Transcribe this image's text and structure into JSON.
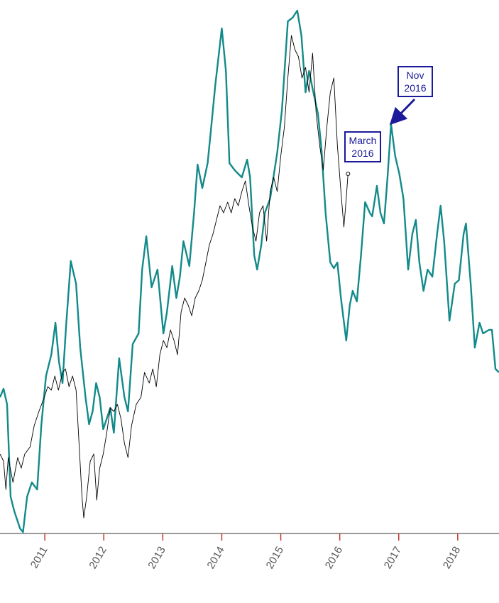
{
  "chart_data": {
    "type": "line",
    "annotations": [
      "March 2016",
      "Nov 2016"
    ],
    "xlim": [
      2010.24,
      2018.7
    ],
    "xticks": [
      2011,
      2012,
      2013,
      2014,
      2015,
      2016,
      2017,
      2018
    ],
    "ylim": [
      0,
      742
    ],
    "series": [
      {
        "color": "#138a8a",
        "x": [
          2010.24,
          2010.3,
          2010.36,
          2010.42,
          2010.48,
          2010.58,
          2010.63,
          2010.7,
          2010.78,
          2010.87,
          2010.94,
          2011.02,
          2011.11,
          2011.18,
          2011.24,
          2011.3,
          2011.36,
          2011.44,
          2011.53,
          2011.6,
          2011.69,
          2011.75,
          2011.81,
          2011.87,
          2011.93,
          2011.99,
          2012.05,
          2012.11,
          2012.17,
          2012.26,
          2012.35,
          2012.41,
          2012.49,
          2012.59,
          2012.65,
          2012.72,
          2012.81,
          2012.91,
          2013.01,
          2013.07,
          2013.16,
          2013.23,
          2013.29,
          2013.35,
          2013.45,
          2013.53,
          2013.59,
          2013.67,
          2013.76,
          2013.82,
          2013.89,
          2014.0,
          2014.07,
          2014.13,
          2014.22,
          2014.34,
          2014.43,
          2014.48,
          2014.55,
          2014.6,
          2014.67,
          2014.73,
          2014.82,
          2014.94,
          2015.02,
          2015.12,
          2015.2,
          2015.28,
          2015.35,
          2015.42,
          2015.48,
          2015.54,
          2015.63,
          2015.69,
          2015.76,
          2015.84,
          2015.9,
          2015.96,
          2016.02,
          2016.11,
          2016.17,
          2016.22,
          2016.29,
          2016.36,
          2016.43,
          2016.51,
          2016.55,
          2016.63,
          2016.69,
          2016.75,
          2016.81,
          2016.87,
          2016.94,
          2017.01,
          2017.08,
          2017.16,
          2017.23,
          2017.29,
          2017.35,
          2017.42,
          2017.49,
          2017.57,
          2017.65,
          2017.71,
          2017.77,
          2017.86,
          2017.95,
          2018.02,
          2018.1,
          2018.14,
          2018.22,
          2018.29,
          2018.37,
          2018.43,
          2018.53,
          2018.58,
          2018.64,
          2018.7
        ],
        "values": [
          192,
          204,
          182,
          52,
          32,
          7,
          2,
          52,
          72,
          62,
          152,
          222,
          252,
          297,
          242,
          212,
          292,
          384,
          352,
          262,
          192,
          154,
          172,
          212,
          192,
          147,
          162,
          177,
          142,
          247,
          192,
          172,
          267,
          282,
          372,
          419,
          347,
          372,
          282,
          312,
          377,
          332,
          362,
          412,
          377,
          452,
          520,
          487,
          522,
          572,
          632,
          712,
          652,
          522,
          512,
          502,
          527,
          502,
          392,
          372,
          407,
          452,
          472,
          537,
          597,
          722,
          727,
          737,
          702,
          622,
          652,
          627,
          592,
          542,
          452,
          382,
          374,
          382,
          332,
          272,
          322,
          342,
          327,
          392,
          467,
          452,
          447,
          490,
          452,
          437,
          502,
          577,
          532,
          507,
          472,
          372,
          422,
          442,
          382,
          342,
          372,
          362,
          422,
          462,
          412,
          300,
          352,
          357,
          422,
          437,
          352,
          262,
          297,
          282,
          287,
          287,
          232,
          227
        ]
      },
      {
        "color": "#000000",
        "x": [
          2010.24,
          2010.3,
          2010.34,
          2010.38,
          2010.46,
          2010.54,
          2010.6,
          2010.66,
          2010.75,
          2010.82,
          2010.9,
          2010.99,
          2011.05,
          2011.11,
          2011.17,
          2011.23,
          2011.3,
          2011.35,
          2011.41,
          2011.47,
          2011.53,
          2011.57,
          2011.63,
          2011.66,
          2011.71,
          2011.77,
          2011.83,
          2011.88,
          2011.93,
          2011.99,
          2012.05,
          2012.11,
          2012.17,
          2012.23,
          2012.29,
          2012.35,
          2012.41,
          2012.47,
          2012.55,
          2012.63,
          2012.69,
          2012.77,
          2012.83,
          2012.89,
          2012.95,
          2013.01,
          2013.07,
          2013.13,
          2013.19,
          2013.25,
          2013.31,
          2013.37,
          2013.43,
          2013.49,
          2013.55,
          2013.61,
          2013.67,
          2013.73,
          2013.79,
          2013.85,
          2013.91,
          2013.97,
          2014.03,
          2014.1,
          2014.16,
          2014.22,
          2014.28,
          2014.34,
          2014.4,
          2014.46,
          2014.52,
          2014.58,
          2014.64,
          2014.7,
          2014.76,
          2014.82,
          2014.88,
          2014.94,
          2015.0,
          2015.06,
          2015.12,
          2015.18,
          2015.24,
          2015.3,
          2015.36,
          2015.42,
          2015.48,
          2015.54,
          2015.6,
          2015.66,
          2015.72,
          2015.78,
          2015.84,
          2015.9,
          2015.96,
          2016.02,
          2016.07,
          2016.11,
          2016.14
        ],
        "values": [
          112,
          102,
          62,
          107,
          72,
          107,
          92,
          112,
          122,
          152,
          172,
          192,
          207,
          202,
          222,
          202,
          227,
          232,
          207,
          222,
          202,
          142,
          52,
          22,
          52,
          102,
          112,
          47,
          92,
          112,
          142,
          177,
          172,
          182,
          162,
          127,
          107,
          152,
          182,
          192,
          227,
          212,
          232,
          207,
          252,
          272,
          262,
          287,
          272,
          252,
          312,
          332,
          322,
          307,
          332,
          342,
          357,
          382,
          407,
          422,
          442,
          462,
          452,
          467,
          452,
          472,
          462,
          482,
          497,
          462,
          432,
          412,
          452,
          462,
          412,
          482,
          502,
          482,
          532,
          572,
          642,
          702,
          682,
          672,
          642,
          657,
          622,
          677,
          592,
          547,
          512,
          572,
          622,
          642,
          547,
          482,
          432,
          472,
          507
        ]
      }
    ]
  }
}
